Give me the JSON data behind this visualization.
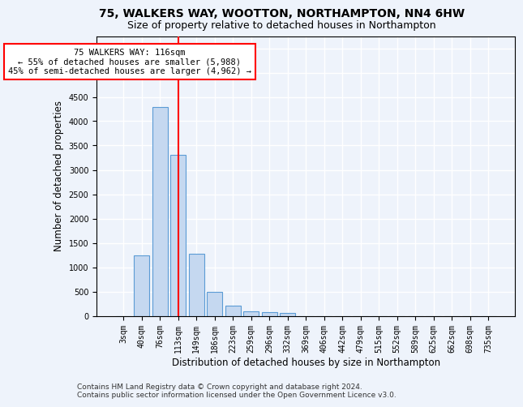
{
  "title": "75, WALKERS WAY, WOOTTON, NORTHAMPTON, NN4 6HW",
  "subtitle": "Size of property relative to detached houses in Northampton",
  "xlabel": "Distribution of detached houses by size in Northampton",
  "ylabel": "Number of detached properties",
  "footer_line1": "Contains HM Land Registry data © Crown copyright and database right 2024.",
  "footer_line2": "Contains public sector information licensed under the Open Government Licence v3.0.",
  "bar_labels": [
    "3sqm",
    "40sqm",
    "76sqm",
    "113sqm",
    "149sqm",
    "186sqm",
    "223sqm",
    "259sqm",
    "296sqm",
    "332sqm",
    "369sqm",
    "406sqm",
    "442sqm",
    "479sqm",
    "515sqm",
    "552sqm",
    "589sqm",
    "625sqm",
    "662sqm",
    "698sqm",
    "735sqm"
  ],
  "bar_values": [
    0,
    1250,
    4300,
    3300,
    1270,
    490,
    215,
    95,
    75,
    55,
    0,
    0,
    0,
    0,
    0,
    0,
    0,
    0,
    0,
    0,
    0
  ],
  "bar_color": "#c5d8f0",
  "bar_edge_color": "#5b9bd5",
  "vline_x": 3,
  "vline_color": "red",
  "annotation_text": "75 WALKERS WAY: 116sqm\n← 55% of detached houses are smaller (5,988)\n45% of semi-detached houses are larger (4,962) →",
  "annotation_box_color": "white",
  "annotation_box_edge_color": "red",
  "ylim": [
    0,
    5750
  ],
  "yticks": [
    0,
    500,
    1000,
    1500,
    2000,
    2500,
    3000,
    3500,
    4000,
    4500,
    5000,
    5500
  ],
  "background_color": "#eef3fb",
  "plot_background_color": "#eef3fb",
  "grid_color": "#ffffff",
  "title_fontsize": 10,
  "subtitle_fontsize": 9,
  "label_fontsize": 8.5,
  "tick_fontsize": 7,
  "footer_fontsize": 6.5
}
